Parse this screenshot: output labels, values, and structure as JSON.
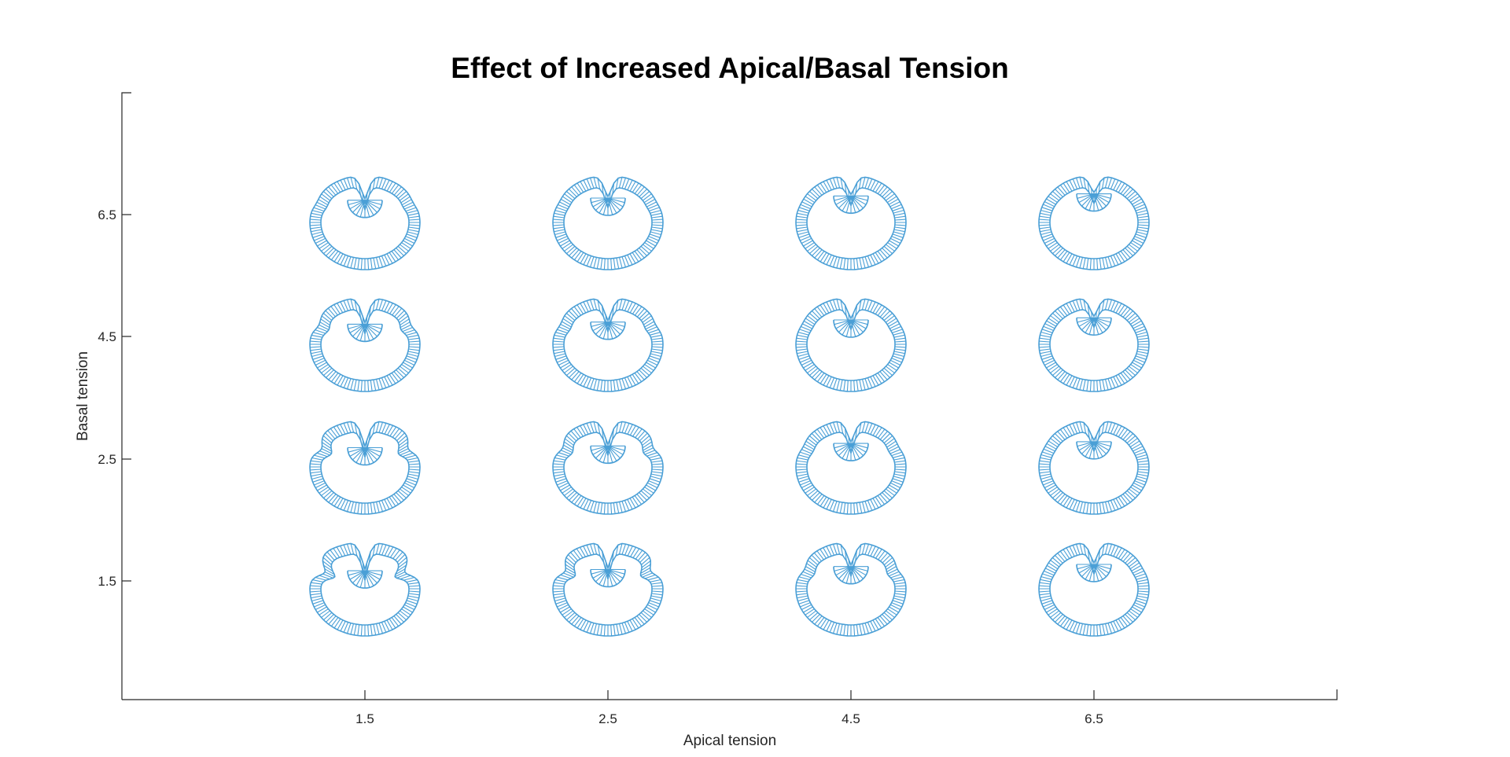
{
  "chart_data": {
    "type": "scatter",
    "title": "Effect of Increased Apical/Basal Tension",
    "xlabel": "Apical tension",
    "ylabel": "Basal tension",
    "x_ticks": [
      "1.5",
      "2.5",
      "4.5",
      "6.5"
    ],
    "y_ticks": [
      "1.5",
      "2.5",
      "4.5",
      "6.5"
    ],
    "x_categories": [
      1.5,
      2.5,
      4.5,
      6.5
    ],
    "y_categories": [
      1.5,
      2.5,
      4.5,
      6.5
    ],
    "marker": "epithelial cell ring shape",
    "marker_color": "#4a9fd6",
    "grid": false,
    "legend": "none",
    "points": [
      {
        "apical": 1.5,
        "basal": 6.5,
        "dent_depth": 0.55,
        "shoulder": 0.1
      },
      {
        "apical": 2.5,
        "basal": 6.5,
        "dent_depth": 0.5,
        "shoulder": 0.06
      },
      {
        "apical": 4.5,
        "basal": 6.5,
        "dent_depth": 0.45,
        "shoulder": 0.03
      },
      {
        "apical": 6.5,
        "basal": 6.5,
        "dent_depth": 0.4,
        "shoulder": 0.0
      },
      {
        "apical": 1.5,
        "basal": 4.5,
        "dent_depth": 0.6,
        "shoulder": 0.25
      },
      {
        "apical": 2.5,
        "basal": 4.5,
        "dent_depth": 0.55,
        "shoulder": 0.14
      },
      {
        "apical": 4.5,
        "basal": 4.5,
        "dent_depth": 0.5,
        "shoulder": 0.06
      },
      {
        "apical": 6.5,
        "basal": 4.5,
        "dent_depth": 0.45,
        "shoulder": 0.02
      },
      {
        "apical": 1.5,
        "basal": 2.5,
        "dent_depth": 0.62,
        "shoulder": 0.45
      },
      {
        "apical": 2.5,
        "basal": 2.5,
        "dent_depth": 0.58,
        "shoulder": 0.3
      },
      {
        "apical": 4.5,
        "basal": 2.5,
        "dent_depth": 0.52,
        "shoulder": 0.12
      },
      {
        "apical": 6.5,
        "basal": 2.5,
        "dent_depth": 0.48,
        "shoulder": 0.04
      },
      {
        "apical": 1.5,
        "basal": 1.5,
        "dent_depth": 0.65,
        "shoulder": 0.7
      },
      {
        "apical": 2.5,
        "basal": 1.5,
        "dent_depth": 0.62,
        "shoulder": 0.5
      },
      {
        "apical": 4.5,
        "basal": 1.5,
        "dent_depth": 0.55,
        "shoulder": 0.22
      },
      {
        "apical": 6.5,
        "basal": 1.5,
        "dent_depth": 0.5,
        "shoulder": 0.06
      }
    ]
  }
}
